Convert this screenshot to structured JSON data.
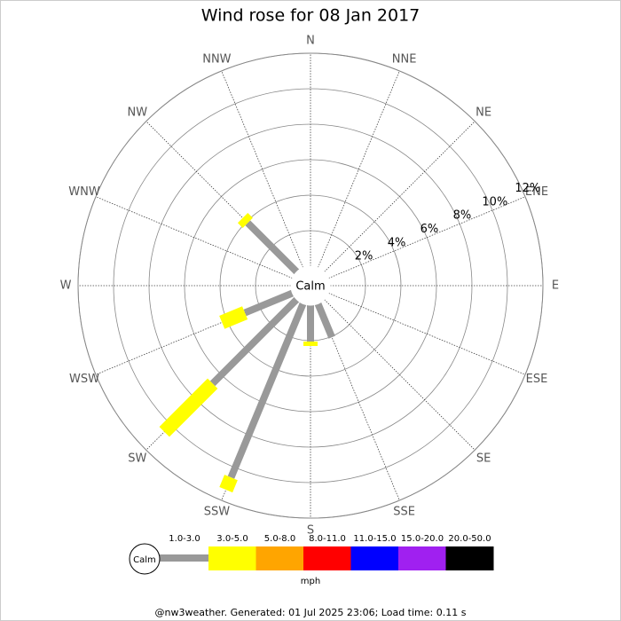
{
  "chart_data": {
    "type": "windrose",
    "title": "Wind rose for 08 Jan 2017",
    "directions": [
      "N",
      "NNE",
      "NE",
      "ENE",
      "E",
      "ESE",
      "SE",
      "SSE",
      "S",
      "SSW",
      "SW",
      "WSW",
      "W",
      "WNW",
      "NW",
      "NNW"
    ],
    "series": [
      {
        "name": "1.0-3.0",
        "color": "#999999",
        "values": [
          0,
          0,
          0,
          0,
          0,
          0,
          0,
          2.05,
          2.05,
          10.6,
          6.7,
          2.9,
          0,
          0,
          3.9,
          0
        ]
      },
      {
        "name": "3.0-5.0",
        "color": "#ffff00",
        "values": [
          0,
          0,
          0,
          0,
          0,
          0,
          0,
          0,
          0.25,
          0.75,
          3.85,
          1.4,
          0,
          0,
          0.4,
          0
        ]
      },
      {
        "name": "5.0-8.0",
        "color": "#ffa500",
        "values": [
          0,
          0,
          0,
          0,
          0,
          0,
          0,
          0,
          0,
          0,
          0,
          0,
          0,
          0,
          0,
          0
        ]
      },
      {
        "name": "8.0-11.0",
        "color": "#ff0000",
        "values": [
          0,
          0,
          0,
          0,
          0,
          0,
          0,
          0,
          0,
          0,
          0,
          0,
          0,
          0,
          0,
          0
        ]
      },
      {
        "name": "11.0-15.0",
        "color": "#0000ff",
        "values": [
          0,
          0,
          0,
          0,
          0,
          0,
          0,
          0,
          0,
          0,
          0,
          0,
          0,
          0,
          0,
          0
        ]
      },
      {
        "name": "15.0-20.0",
        "color": "#a020f0",
        "values": [
          0,
          0,
          0,
          0,
          0,
          0,
          0,
          0,
          0,
          0,
          0,
          0,
          0,
          0,
          0,
          0
        ]
      },
      {
        "name": "20.0-50.0",
        "color": "#000000",
        "values": [
          0,
          0,
          0,
          0,
          0,
          0,
          0,
          0,
          0,
          0,
          0,
          0,
          0,
          0,
          0,
          0
        ]
      }
    ],
    "rlim": [
      0,
      12
    ],
    "rticks": [
      {
        "value": 2,
        "label": "2%"
      },
      {
        "value": 4,
        "label": "4%"
      },
      {
        "value": 6,
        "label": "6%"
      },
      {
        "value": 8,
        "label": "8%"
      },
      {
        "value": 10,
        "label": "10%"
      },
      {
        "value": 12,
        "label": "12%"
      }
    ],
    "calm_label": "Calm",
    "unit": "mph",
    "footer": "@nw3weather. Generated: 01 Jul 2025 23:06; Load time: 0.11 s"
  }
}
